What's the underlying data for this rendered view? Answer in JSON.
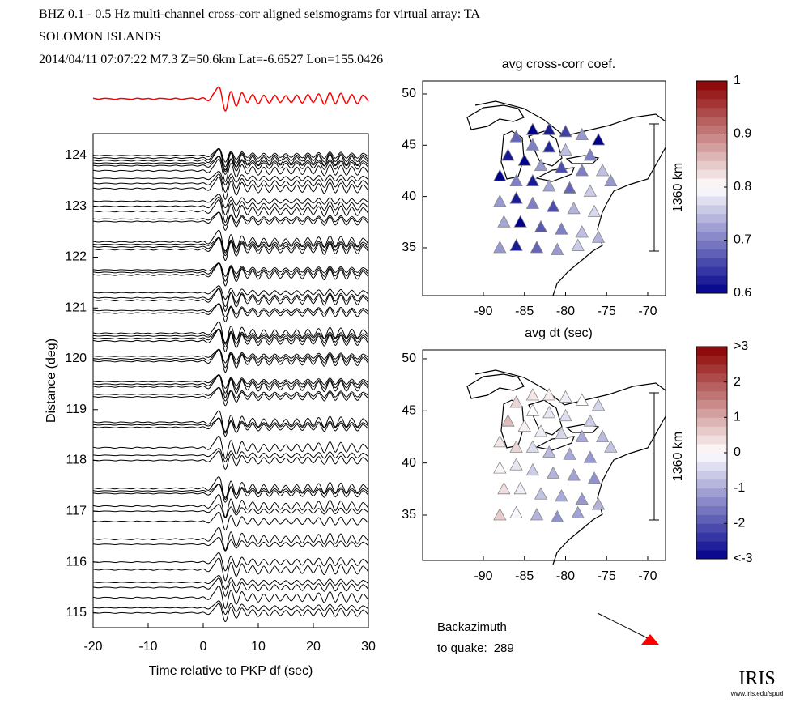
{
  "header": {
    "line1": "BHZ  0.1 - 0.5 Hz  multi-channel cross-corr aligned seismograms for virtual array: TA",
    "line2": "SOLOMON ISLANDS",
    "line3": "2014/04/11  07:07:22  M7.3  Z=50.6km Lat=-6.6527 Lon=155.0426"
  },
  "chart_data": [
    {
      "type": "seismogram",
      "xlabel": "Time relative to PKP df (sec)",
      "ylabel": "Distance (deg)",
      "xlim": [
        -20,
        30
      ],
      "xticks": [
        -20,
        -10,
        0,
        10,
        20,
        30
      ],
      "ylim": [
        114.71,
        124.43
      ],
      "yticks": [
        115,
        116,
        117,
        118,
        119,
        120,
        121,
        122,
        123,
        124
      ],
      "stack": {
        "color": "#ff0000",
        "ylim": [
          -1.2,
          1.2
        ],
        "x": [
          -20,
          -19,
          -18,
          -17,
          -16,
          -15,
          -14,
          -13,
          -12,
          -11,
          -10,
          -9,
          -8,
          -7,
          -6,
          -5,
          -4,
          -3,
          -2,
          -1,
          0,
          1,
          2,
          3,
          4,
          5,
          6,
          7,
          8,
          9,
          10,
          11,
          12,
          13,
          14,
          15,
          16,
          17,
          18,
          19,
          20,
          21,
          22,
          23,
          24,
          25,
          26,
          27,
          28,
          29,
          30
        ],
        "values": [
          0.05,
          -0.03,
          0.04,
          0.02,
          -0.05,
          0.03,
          0,
          -0.04,
          0.05,
          -0.02,
          0.03,
          -0.05,
          0.04,
          0.02,
          -0.03,
          0.05,
          -0.04,
          0.02,
          0.06,
          -0.05,
          0.08,
          -0.15,
          0.5,
          0.9,
          -1,
          0.6,
          -0.6,
          0.5,
          -0.3,
          0.35,
          -0.4,
          0.3,
          -0.35,
          0.3,
          -0.3,
          0.25,
          -0.3,
          0.3,
          -0.35,
          0.35,
          -0.3,
          0.4,
          -0.45,
          0.5,
          -0.4,
          0.45,
          -0.4,
          0.35,
          -0.4,
          0.3,
          -0.2
        ]
      },
      "trace_color": "#000000",
      "distances": [
        124.0,
        123.95,
        123.9,
        123.85,
        123.8,
        123.7,
        123.55,
        123.45,
        123.35,
        123.1,
        123.0,
        122.9,
        122.75,
        122.7,
        122.3,
        122.25,
        122.2,
        122.15,
        121.75,
        121.7,
        121.65,
        121.3,
        121.2,
        121.15,
        120.95,
        120.9,
        120.5,
        120.45,
        120.4,
        120.35,
        120.05,
        120.0,
        119.95,
        119.55,
        119.5,
        119.45,
        119.3,
        119.25,
        118.75,
        118.7,
        118.65,
        118.25,
        118.1,
        118.0,
        117.45,
        117.4,
        117.35,
        117.1,
        117.0,
        116.8,
        116.45,
        116.35,
        116.0,
        115.85,
        115.6,
        115.5,
        115.3,
        115.1,
        115.0
      ]
    },
    {
      "type": "map",
      "xlim": [
        -97.39,
        -67.83
      ],
      "xticks": [
        -90,
        -85,
        -80,
        -75,
        -70
      ],
      "ylim": [
        30.34,
        51.26
      ],
      "yticks": [
        35,
        40,
        45,
        50
      ],
      "scale_label": "1360 km",
      "colormap": [
        "#00008b",
        "#ffffff",
        "#8b0000"
      ],
      "colorbar": {
        "title": "avg cross-corr coef.",
        "lim": [
          0.6,
          1
        ],
        "ticks": [
          0.6,
          0.7,
          0.8,
          0.9,
          1
        ]
      },
      "x": [
        -84,
        -82,
        -80,
        -78,
        -76,
        -86,
        -84,
        -82,
        -80,
        -77,
        -87,
        -85,
        -83,
        -80.5,
        -78,
        -75.5,
        -88,
        -86,
        -84,
        -82,
        -79.5,
        -77,
        -88,
        -86,
        -84,
        -81.5,
        -79,
        -76.5,
        -87.5,
        -85.5,
        -83,
        -80.5,
        -78,
        -88,
        -86,
        -83.5,
        -81,
        -78.5,
        -76,
        -74.5
      ],
      "y": [
        46.5,
        46.5,
        46.3,
        46,
        45.5,
        45.8,
        45,
        44.8,
        44.5,
        44,
        44,
        43.5,
        43,
        42.8,
        42.5,
        42.5,
        42,
        41.5,
        41.5,
        41,
        40.8,
        40.5,
        39.5,
        39.8,
        39.3,
        39,
        38.8,
        38.5,
        37.5,
        37.5,
        37,
        36.8,
        36.5,
        35,
        35.2,
        35,
        34.8,
        35.2,
        36,
        41.5
      ],
      "values": [
        0.6,
        0.62,
        0.65,
        0.72,
        0.6,
        0.68,
        0.7,
        0.63,
        0.75,
        0.7,
        0.62,
        0.6,
        0.72,
        0.66,
        0.7,
        0.75,
        0.6,
        0.7,
        0.62,
        0.73,
        0.68,
        0.76,
        0.72,
        0.62,
        0.7,
        0.66,
        0.74,
        0.77,
        0.73,
        0.6,
        0.67,
        0.7,
        0.75,
        0.72,
        0.62,
        0.68,
        0.72,
        0.76,
        0.74,
        0.72
      ]
    },
    {
      "type": "map",
      "xlim": [
        -97.39,
        -67.83
      ],
      "xticks": [
        -90,
        -85,
        -80,
        -75,
        -70
      ],
      "ylim": [
        30.65,
        50.85
      ],
      "yticks": [
        35,
        40,
        45,
        50
      ],
      "scale_label": "1360 km",
      "colormap": [
        "#00008b",
        "#ffffff",
        "#8b0000"
      ],
      "colorbar": {
        "title": "avg dt (sec)",
        "lim": [
          -3,
          3
        ],
        "ticks": [
          {
            "value": 3,
            "label": ">3"
          },
          2,
          1,
          0,
          -1,
          -2,
          {
            "value": -3,
            "label": "<-3"
          }
        ]
      },
      "x": [
        -84,
        -82,
        -80,
        -78,
        -76,
        -86,
        -84,
        -82,
        -80,
        -77,
        -87,
        -85,
        -83,
        -80.5,
        -78,
        -75.5,
        -88,
        -86,
        -84,
        -82,
        -79.5,
        -77,
        -88,
        -86,
        -84,
        -81.5,
        -79,
        -76.5,
        -87.5,
        -85.5,
        -83,
        -80.5,
        -78,
        -88,
        -86,
        -83.5,
        -81,
        -78.5,
        -76,
        -74.5
      ],
      "y": [
        46.5,
        46.5,
        46.3,
        46,
        45.5,
        45.8,
        45,
        44.8,
        44.5,
        44,
        44,
        43.5,
        43,
        42.8,
        42.5,
        42.5,
        42,
        41.5,
        41.5,
        41,
        40.8,
        40.5,
        39.5,
        39.8,
        39.3,
        39,
        38.8,
        38.5,
        37.5,
        37.5,
        37,
        36.8,
        36.5,
        35,
        35.2,
        35,
        34.8,
        35.2,
        36,
        41.5
      ],
      "values": [
        0.3,
        0.2,
        -0.2,
        0,
        -0.5,
        0.5,
        0,
        -0.3,
        -0.4,
        -0.6,
        0.8,
        0.2,
        -0.2,
        -0.5,
        -1,
        -0.8,
        0.3,
        0.5,
        -0.4,
        -0.8,
        -1,
        -1.2,
        0.1,
        -0.3,
        -0.6,
        -0.9,
        -1.1,
        -1.3,
        0.4,
        -0.2,
        -0.7,
        -1,
        -1.2,
        0.6,
        -0.1,
        -0.9,
        -1.3,
        -1.1,
        -0.9,
        -0.7
      ]
    }
  ],
  "backazimuth": {
    "label": "Backazimuth",
    "prefix": "to quake:",
    "value": 289
  },
  "logo": {
    "name": "IRIS",
    "url": "www.iris.edu/spud"
  }
}
